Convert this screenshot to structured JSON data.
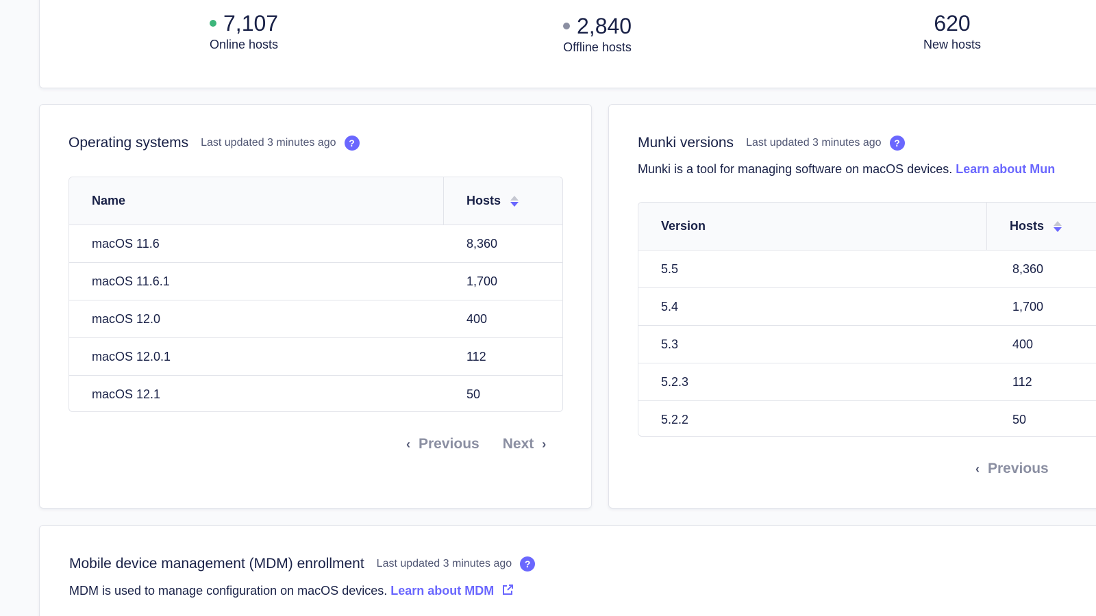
{
  "summary": {
    "online": {
      "value": "7,107",
      "label": "Online hosts",
      "dot_color": "#3db67b"
    },
    "offline": {
      "value": "2,840",
      "label": "Offline hosts",
      "dot_color": "#8b8fa2"
    },
    "new": {
      "value": "620",
      "label": "New hosts"
    }
  },
  "os_card": {
    "title": "Operating systems",
    "updated": "Last updated 3 minutes ago",
    "help": "?",
    "columns": {
      "name": "Name",
      "hosts": "Hosts"
    },
    "rows": [
      {
        "name": "macOS 11.6",
        "hosts": "8,360"
      },
      {
        "name": "macOS 11.6.1",
        "hosts": "1,700"
      },
      {
        "name": "macOS 12.0",
        "hosts": "400"
      },
      {
        "name": "macOS 12.0.1",
        "hosts": "112"
      },
      {
        "name": "macOS 12.1",
        "hosts": "50"
      }
    ],
    "previous": "Previous",
    "next": "Next"
  },
  "munki_card": {
    "title": "Munki versions",
    "updated": "Last updated 3 minutes ago",
    "help": "?",
    "description": "Munki is a tool for managing software on macOS devices.",
    "learn_link": "Learn about Mun",
    "columns": {
      "version": "Version",
      "hosts": "Hosts"
    },
    "rows": [
      {
        "version": "5.5",
        "hosts": "8,360"
      },
      {
        "version": "5.4",
        "hosts": "1,700"
      },
      {
        "version": "5.3",
        "hosts": "400"
      },
      {
        "version": "5.2.3",
        "hosts": "112"
      },
      {
        "version": "5.2.2",
        "hosts": "50"
      }
    ],
    "previous": "Previous"
  },
  "mdm_card": {
    "title": "Mobile device management (MDM) enrollment",
    "updated": "Last updated 3 minutes ago",
    "help": "?",
    "description": "MDM is used to manage configuration on macOS devices.",
    "learn_link": "Learn about MDM"
  },
  "icons": {
    "sort": "sort-icon",
    "prev": "chevron-left-icon",
    "next": "chevron-right-icon",
    "external": "external-link-icon"
  },
  "colors": {
    "accent": "#6a67fe",
    "text": "#192147",
    "muted": "#515774",
    "online": "#3db67b",
    "offline": "#8b8fa2"
  }
}
